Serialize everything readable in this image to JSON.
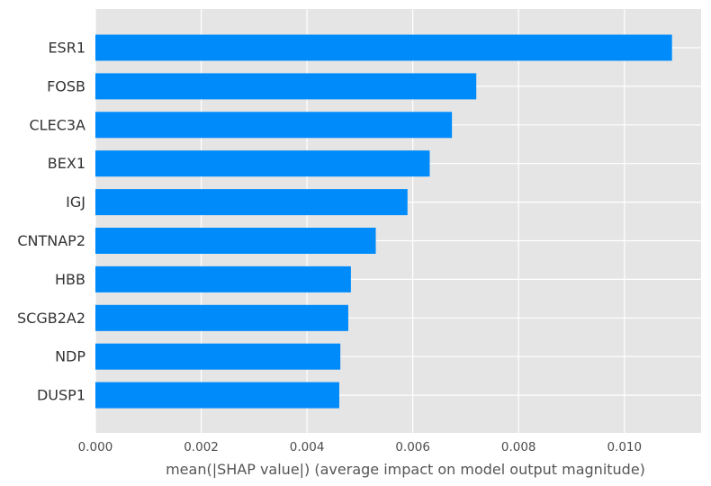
{
  "chart_data": {
    "type": "bar",
    "orientation": "horizontal",
    "categories": [
      "ESR1",
      "FOSB",
      "CLEC3A",
      "BEX1",
      "IGJ",
      "CNTNAP2",
      "HBB",
      "SCGB2A2",
      "NDP",
      "DUSP1"
    ],
    "values": [
      0.0109,
      0.0072,
      0.00674,
      0.00632,
      0.0059,
      0.0053,
      0.00483,
      0.00478,
      0.00463,
      0.00461
    ],
    "xlabel": "mean(|SHAP value|) (average impact on model output magnitude)",
    "xlim": [
      0,
      0.01145
    ],
    "xticks": [
      0.0,
      0.002,
      0.004,
      0.006,
      0.008,
      0.01
    ],
    "xtick_labels": [
      "0.000",
      "0.002",
      "0.004",
      "0.006",
      "0.008",
      "0.010"
    ],
    "grid": true,
    "colors": {
      "bar": "#008bfb",
      "plot_background": "#e5e5e5",
      "grid": "#ffffff"
    }
  }
}
